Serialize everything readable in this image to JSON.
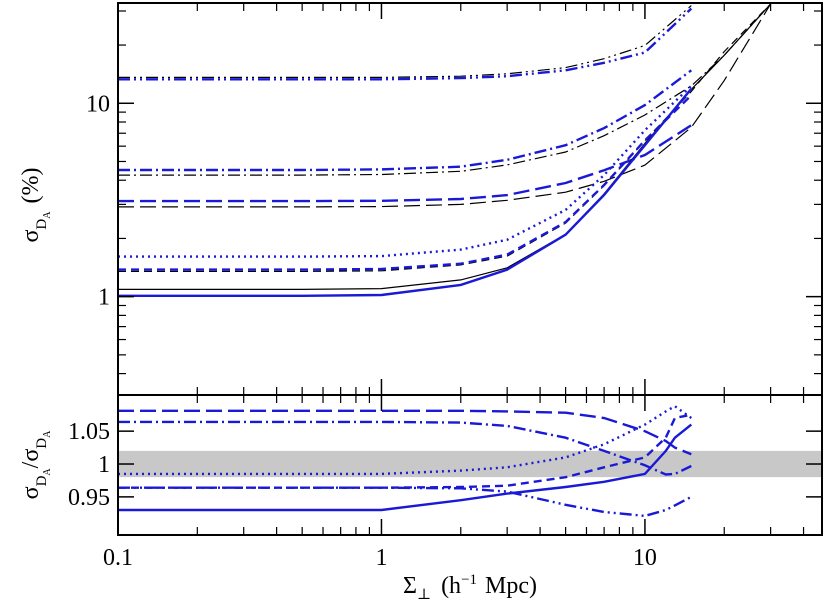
{
  "chart_data": [
    {
      "type": "line",
      "ylog": true,
      "xlog": true,
      "ylabel": [
        "σ",
        "D",
        "A",
        "(%)"
      ],
      "xlim": [
        0.1,
        47
      ],
      "ylim": [
        0.31,
        33
      ],
      "yticks": [
        1,
        10
      ],
      "yminorticks": [
        0.4,
        0.5,
        0.6,
        0.7,
        0.8,
        0.9,
        2,
        3,
        4,
        5,
        6,
        7,
        8,
        9,
        20,
        30
      ],
      "x": [
        0.1,
        0.2,
        0.5,
        1,
        2,
        3,
        5,
        7,
        10,
        15,
        20,
        30
      ],
      "series": [
        {
          "color": "#000000",
          "dash": "dashdotdot",
          "values": [
            13.6,
            13.6,
            13.6,
            13.6,
            13.8,
            14.2,
            15.3,
            17,
            19.9,
            32,
            null,
            null
          ]
        },
        {
          "color": "#1a1ad6",
          "dash": "dashdotdot",
          "values": [
            13.3,
            13.3,
            13.3,
            13.3,
            13.5,
            13.8,
            14.8,
            16.2,
            18.3,
            30.9,
            null,
            null
          ]
        },
        {
          "color": "#000000",
          "dash": "dashdot",
          "values": [
            4.25,
            4.25,
            4.25,
            4.28,
            4.45,
            4.8,
            5.6,
            6.8,
            8.7,
            12.3,
            17.7,
            32.6
          ]
        },
        {
          "color": "#1a1ad6",
          "dash": "dashdot",
          "values": [
            4.52,
            4.52,
            4.52,
            4.55,
            4.7,
            5.1,
            6.07,
            7.44,
            9.78,
            14.8,
            null,
            null
          ]
        },
        {
          "color": "#000000",
          "dash": "longdash",
          "values": [
            2.91,
            2.91,
            2.91,
            2.92,
            3.0,
            3.15,
            3.47,
            3.95,
            4.79,
            7.5,
            13.1,
            32.6
          ]
        },
        {
          "color": "#1a1ad6",
          "dash": "longdash",
          "values": [
            3.12,
            3.12,
            3.12,
            3.13,
            3.2,
            3.35,
            3.87,
            4.5,
            5.4,
            7.7,
            null,
            null
          ]
        },
        {
          "color": "#1a1ad6",
          "dash": "dot",
          "values": [
            1.61,
            1.61,
            1.61,
            1.62,
            1.75,
            1.97,
            2.81,
            4.25,
            7.25,
            12.3,
            null,
            null
          ]
        },
        {
          "color": "#000000",
          "dash": "dash",
          "values": [
            1.35,
            1.35,
            1.35,
            1.36,
            1.46,
            1.62,
            2.4,
            3.75,
            6.4,
            11.5,
            18.5,
            32.6
          ]
        },
        {
          "color": "#1a1ad6",
          "dash": "dash",
          "values": [
            1.38,
            1.38,
            1.38,
            1.39,
            1.48,
            1.65,
            2.43,
            3.78,
            6.43,
            11.0,
            null,
            null
          ]
        },
        {
          "color": "#000000",
          "dash": "solid",
          "values": [
            1.09,
            1.09,
            1.09,
            1.1,
            1.22,
            1.41,
            2.1,
            3.4,
            6.2,
            11.8,
            17.7,
            32.6
          ]
        },
        {
          "color": "#1a1ad6",
          "dash": "solid",
          "values": [
            1.01,
            1.01,
            1.01,
            1.02,
            1.15,
            1.38,
            2.09,
            3.36,
            6.07,
            11.9,
            null,
            null
          ]
        }
      ]
    },
    {
      "type": "line",
      "xlog": true,
      "ylabel": [
        "σ",
        "D",
        "A",
        "/σ",
        "D",
        "A"
      ],
      "xlabel": [
        "Σ",
        "⊥",
        "(h",
        "−1",
        "Mpc)"
      ],
      "xlim": [
        0.1,
        47
      ],
      "ylim": [
        0.892,
        1.105
      ],
      "xticks": [
        0.1,
        1,
        10
      ],
      "xminorticks": [
        0.2,
        0.3,
        0.4,
        0.5,
        0.6,
        0.7,
        0.8,
        0.9,
        2,
        3,
        4,
        5,
        6,
        7,
        8,
        9,
        20,
        30,
        40
      ],
      "yticks": [
        0.95,
        1,
        1.05
      ],
      "band": [
        0.98,
        1.02
      ],
      "band_color": "#c8c8c8",
      "x": [
        0.1,
        0.2,
        0.5,
        1,
        2,
        3,
        5,
        7,
        10,
        12,
        13,
        15
      ],
      "series": [
        {
          "color": "#1a1ad6",
          "dash": "longdash",
          "values": [
            1.081,
            1.081,
            1.081,
            1.081,
            1.081,
            1.08,
            1.078,
            1.07,
            1.05,
            1.035,
            1.025,
            1.015
          ]
        },
        {
          "color": "#1a1ad6",
          "dash": "dashdot",
          "values": [
            1.064,
            1.064,
            1.064,
            1.064,
            1.063,
            1.058,
            1.04,
            1.02,
            0.998,
            0.984,
            0.985,
            0.997
          ]
        },
        {
          "color": "#1a1ad6",
          "dash": "dot",
          "values": [
            0.985,
            0.985,
            0.985,
            0.985,
            0.99,
            0.995,
            1.01,
            1.03,
            1.06,
            1.08,
            1.088,
            1.07
          ]
        },
        {
          "color": "#1a1ad6",
          "dash": "dash",
          "values": [
            0.964,
            0.964,
            0.964,
            0.964,
            0.965,
            0.967,
            0.98,
            0.995,
            1.01,
            1.04,
            1.07,
            1.075
          ]
        },
        {
          "color": "#1a1ad6",
          "dash": "solid",
          "values": [
            0.93,
            0.93,
            0.93,
            0.93,
            0.945,
            0.955,
            0.965,
            0.973,
            0.985,
            1.02,
            1.04,
            1.06
          ]
        },
        {
          "color": "#1a1ad6",
          "dash": "dashdotdot",
          "values": [
            0.964,
            0.964,
            0.964,
            0.964,
            0.963,
            0.958,
            0.938,
            0.927,
            0.921,
            0.93,
            0.937,
            0.95
          ]
        }
      ]
    }
  ]
}
